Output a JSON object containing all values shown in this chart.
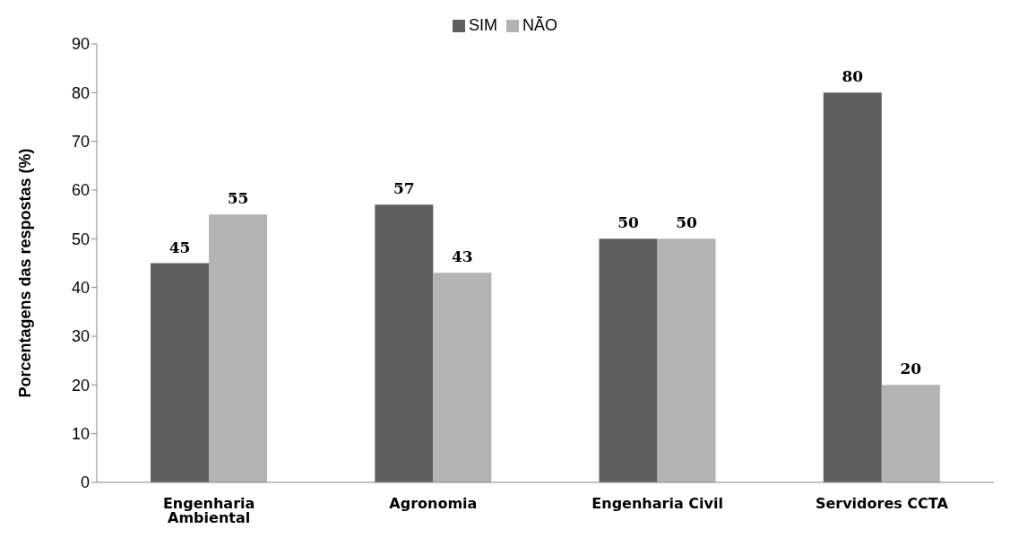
{
  "chart_data": {
    "type": "bar",
    "categories": [
      "Engenharia Ambiental",
      "Agronomia",
      "Engenharia Civil",
      "Servidores CCTA"
    ],
    "series": [
      {
        "name": "SIM",
        "color": "#5f5f5f",
        "values": [
          45,
          57,
          50,
          80
        ]
      },
      {
        "name": "NÃO",
        "color": "#b3b3b3",
        "values": [
          55,
          43,
          50,
          20
        ]
      }
    ],
    "ylabel": "Porcentagens das respostas (%)",
    "ylim": [
      0,
      90
    ],
    "yticks": [
      0,
      10,
      20,
      30,
      40,
      50,
      60,
      70,
      80,
      90
    ],
    "data_labels": true,
    "grid": false,
    "legend": "top"
  }
}
